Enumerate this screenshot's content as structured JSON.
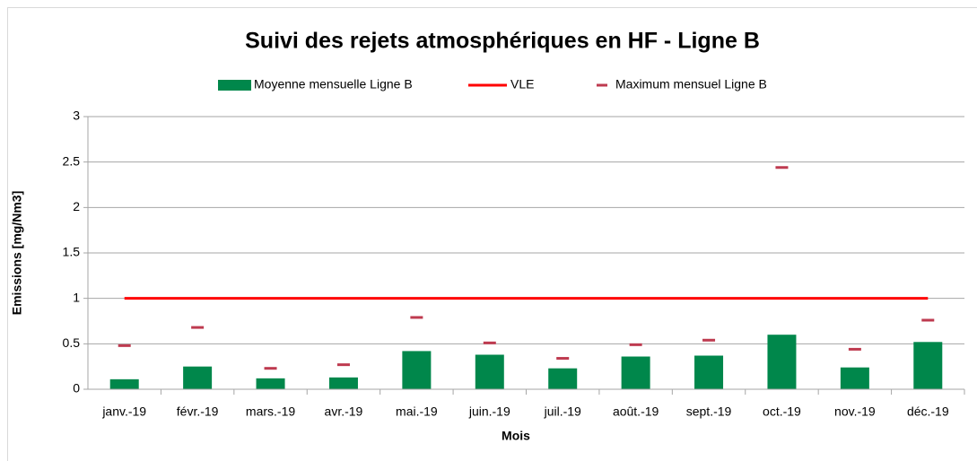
{
  "chart_data": {
    "type": "bar",
    "title": "Suivi des rejets atmosphériques en HF - Ligne B",
    "x_label": "Mois",
    "y_label": "Emissions [mg/Nm3]",
    "categories": [
      "janv.-19",
      "févr.-19",
      "mars.-19",
      "avr.-19",
      "mai.-19",
      "juin.-19",
      "juil.-19",
      "août.-19",
      "sept.-19",
      "oct.-19",
      "nov.-19",
      "déc.-19"
    ],
    "series": [
      {
        "name": "Moyenne mensuelle Ligne B",
        "type": "bar",
        "color": "#00874b",
        "values": [
          0.11,
          0.25,
          0.12,
          0.13,
          0.42,
          0.38,
          0.23,
          0.36,
          0.37,
          0.6,
          0.24,
          0.52
        ]
      },
      {
        "name": "VLE",
        "type": "line",
        "color": "#ff0000",
        "values": [
          1,
          1,
          1,
          1,
          1,
          1,
          1,
          1,
          1,
          1,
          1,
          1
        ]
      },
      {
        "name": "Maximum mensuel Ligne B",
        "type": "marker",
        "color": "#be3a4f",
        "values": [
          0.48,
          0.68,
          0.23,
          0.27,
          0.79,
          0.51,
          0.34,
          0.49,
          0.54,
          2.44,
          0.44,
          0.76
        ]
      }
    ],
    "ylim": [
      0,
      3
    ],
    "yticks": [
      0,
      0.5,
      1,
      1.5,
      2,
      2.5,
      3
    ],
    "grid": true,
    "legend": "top"
  }
}
